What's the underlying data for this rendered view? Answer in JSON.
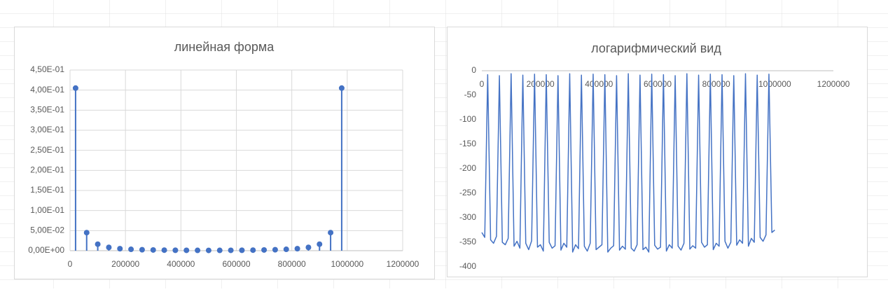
{
  "chart_data": [
    {
      "type": "stem",
      "title": "линейная форма",
      "color": "#4472c4",
      "grid": true,
      "xlim": [
        0,
        1200000
      ],
      "xticks": [
        0,
        200000,
        400000,
        600000,
        800000,
        1000000,
        1200000
      ],
      "ylim": [
        0,
        0.45
      ],
      "yticks": [
        {
          "value": 0,
          "label": "0,00E+00"
        },
        {
          "value": 0.05,
          "label": "5,00E-02"
        },
        {
          "value": 0.1,
          "label": "1,00E-01"
        },
        {
          "value": 0.15,
          "label": "1,50E-01"
        },
        {
          "value": 0.2,
          "label": "2,00E-01"
        },
        {
          "value": 0.25,
          "label": "2,50E-01"
        },
        {
          "value": 0.3,
          "label": "3,00E-01"
        },
        {
          "value": 0.35,
          "label": "3,50E-01"
        },
        {
          "value": 0.4,
          "label": "4,00E-01"
        },
        {
          "value": 0.45,
          "label": "4,50E-01"
        }
      ],
      "x": [
        20000,
        60000,
        100000,
        140000,
        180000,
        220000,
        260000,
        300000,
        340000,
        380000,
        420000,
        460000,
        500000,
        540000,
        580000,
        620000,
        660000,
        700000,
        740000,
        780000,
        820000,
        860000,
        900000,
        940000,
        980000
      ],
      "values": [
        0.405,
        0.045,
        0.0162,
        0.0083,
        0.005,
        0.0034,
        0.0024,
        0.0018,
        0.0014,
        0.0011,
        0.0009,
        0.0008,
        0.0007,
        0.0008,
        0.0009,
        0.0011,
        0.0014,
        0.0018,
        0.0024,
        0.0034,
        0.005,
        0.0083,
        0.0162,
        0.045,
        0.405
      ]
    },
    {
      "type": "line",
      "title": "логарифмический вид",
      "color": "#4472c4",
      "grid": false,
      "xlim": [
        0,
        1200000
      ],
      "xticks": [
        0,
        200000,
        400000,
        600000,
        800000,
        1000000,
        1200000
      ],
      "ylim": [
        -400,
        0
      ],
      "yticks": [
        0,
        -50,
        -100,
        -150,
        -200,
        -250,
        -300,
        -350,
        -400
      ],
      "x": [
        0,
        10000,
        20000,
        30000,
        40000,
        50000,
        60000,
        70000,
        80000,
        90000,
        100000,
        110000,
        120000,
        130000,
        140000,
        150000,
        160000,
        170000,
        180000,
        190000,
        200000,
        210000,
        220000,
        230000,
        240000,
        250000,
        260000,
        270000,
        280000,
        290000,
        300000,
        310000,
        320000,
        330000,
        340000,
        350000,
        360000,
        370000,
        380000,
        390000,
        400000,
        410000,
        420000,
        430000,
        440000,
        450000,
        460000,
        470000,
        480000,
        490000,
        500000,
        510000,
        520000,
        530000,
        540000,
        550000,
        560000,
        570000,
        580000,
        590000,
        600000,
        610000,
        620000,
        630000,
        640000,
        650000,
        660000,
        670000,
        680000,
        690000,
        700000,
        710000,
        720000,
        730000,
        740000,
        750000,
        760000,
        770000,
        780000,
        790000,
        800000,
        810000,
        820000,
        830000,
        840000,
        850000,
        860000,
        870000,
        880000,
        890000,
        900000,
        910000,
        920000,
        930000,
        940000,
        950000,
        960000,
        970000,
        980000,
        990000,
        1000000
      ],
      "values": [
        -330,
        -340,
        -8,
        -345,
        -352,
        -338,
        -10,
        -350,
        -355,
        -342,
        -6,
        -358,
        -348,
        -362,
        -9,
        -352,
        -365,
        -347,
        -7,
        -360,
        -355,
        -368,
        -8,
        -350,
        -362,
        -357,
        -10,
        -366,
        -352,
        -360,
        -6,
        -370,
        -355,
        -363,
        -9,
        -358,
        -368,
        -352,
        -7,
        -365,
        -360,
        -355,
        -8,
        -370,
        -362,
        -357,
        -10,
        -366,
        -358,
        -364,
        -6,
        -362,
        -368,
        -355,
        -9,
        -365,
        -360,
        -370,
        -7,
        -356,
        -364,
        -360,
        -8,
        -368,
        -355,
        -362,
        -10,
        -358,
        -366,
        -352,
        -6,
        -364,
        -357,
        -362,
        -9,
        -350,
        -360,
        -355,
        -7,
        -365,
        -352,
        -358,
        -8,
        -348,
        -362,
        -350,
        -10,
        -356,
        -345,
        -352,
        -6,
        -358,
        -342,
        -350,
        -9,
        -340,
        -348,
        -335,
        -7,
        -330,
        -325
      ]
    }
  ]
}
